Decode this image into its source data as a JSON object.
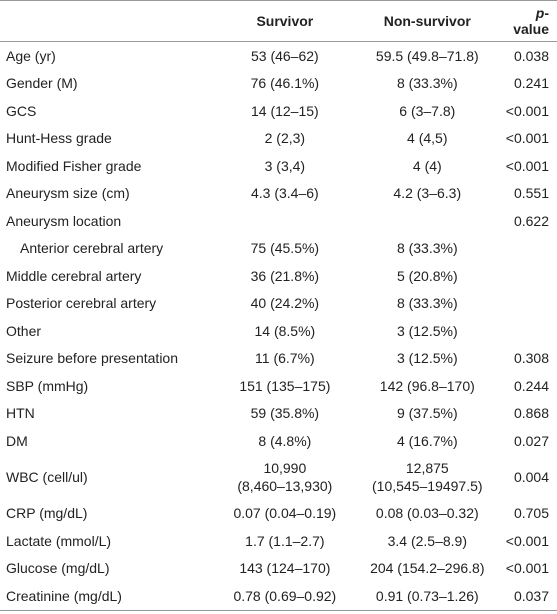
{
  "table": {
    "header": [
      "Survivor",
      "Non-survivor",
      "p-value"
    ],
    "rows": [
      [
        "Age (yr)",
        "53 (46–62)",
        "59.5 (49.8–71.8)",
        "0.038"
      ],
      [
        "Gender (M)",
        "76 (46.1%)",
        "8 (33.3%)",
        "0.241"
      ],
      [
        "GCS",
        "14 (12–15)",
        "6 (3–7.8)",
        "<0.001"
      ],
      [
        "Hunt-Hess grade",
        "2 (2,3)",
        "4 (4,5)",
        "<0.001"
      ],
      [
        "Modified Fisher grade",
        "3 (3,4)",
        "4 (4)",
        "<0.001"
      ],
      [
        "Aneurysm size (cm)",
        "4.3 (3.4–6)",
        "4.2 (3–6.3)",
        "0.551"
      ],
      [
        "Aneurysm location",
        null,
        null,
        "0.622"
      ],
      [
        "Anterior cerebral artery",
        "75 (45.5%)",
        "8 (33.3%)",
        null
      ],
      [
        "Middle cerebral artery",
        "36 (21.8%)",
        "5 (20.8%)",
        null
      ],
      [
        "Posterior cerebral artery",
        "40 (24.2%)",
        "8 (33.3%)",
        null
      ],
      [
        "Other",
        "14 (8.5%)",
        "3 (12.5%)",
        null
      ],
      [
        "Seizure before presentation",
        "11 (6.7%)",
        "3 (12.5%)",
        "0.308"
      ],
      [
        "SBP (mmHg)",
        "151 (135–175)",
        "142 (96.8–170)",
        "0.244"
      ],
      [
        "HTN",
        "59 (35.8%)",
        "9 (37.5%)",
        "0.868"
      ],
      [
        "DM",
        "8 (4.8%)",
        "4 (16.7%)",
        "0.027"
      ],
      [
        "WBC (cell/ul)",
        "10,990\n(8,460–13,930)",
        "12,875\n(10,545–19497.5)",
        "0.004"
      ],
      [
        "CRP (mg/dL)",
        "0.07 (0.04–0.19)",
        "0.08 (0.03–0.32)",
        "0.705"
      ],
      [
        "Lactate (mmol/L)",
        "1.7 (1.1–2.7)",
        "3.4 (2.5–8.9)",
        "<0.001"
      ],
      [
        "Glucose (mg/dL)",
        "143 (124–170)",
        "204 (154.2–296.8)",
        "<0.001"
      ],
      [
        "Creatinine (mg/dL)",
        "0.78 (0.69–0.92)",
        "0.91 (0.73–1.26)",
        "0.037"
      ]
    ]
  }
}
